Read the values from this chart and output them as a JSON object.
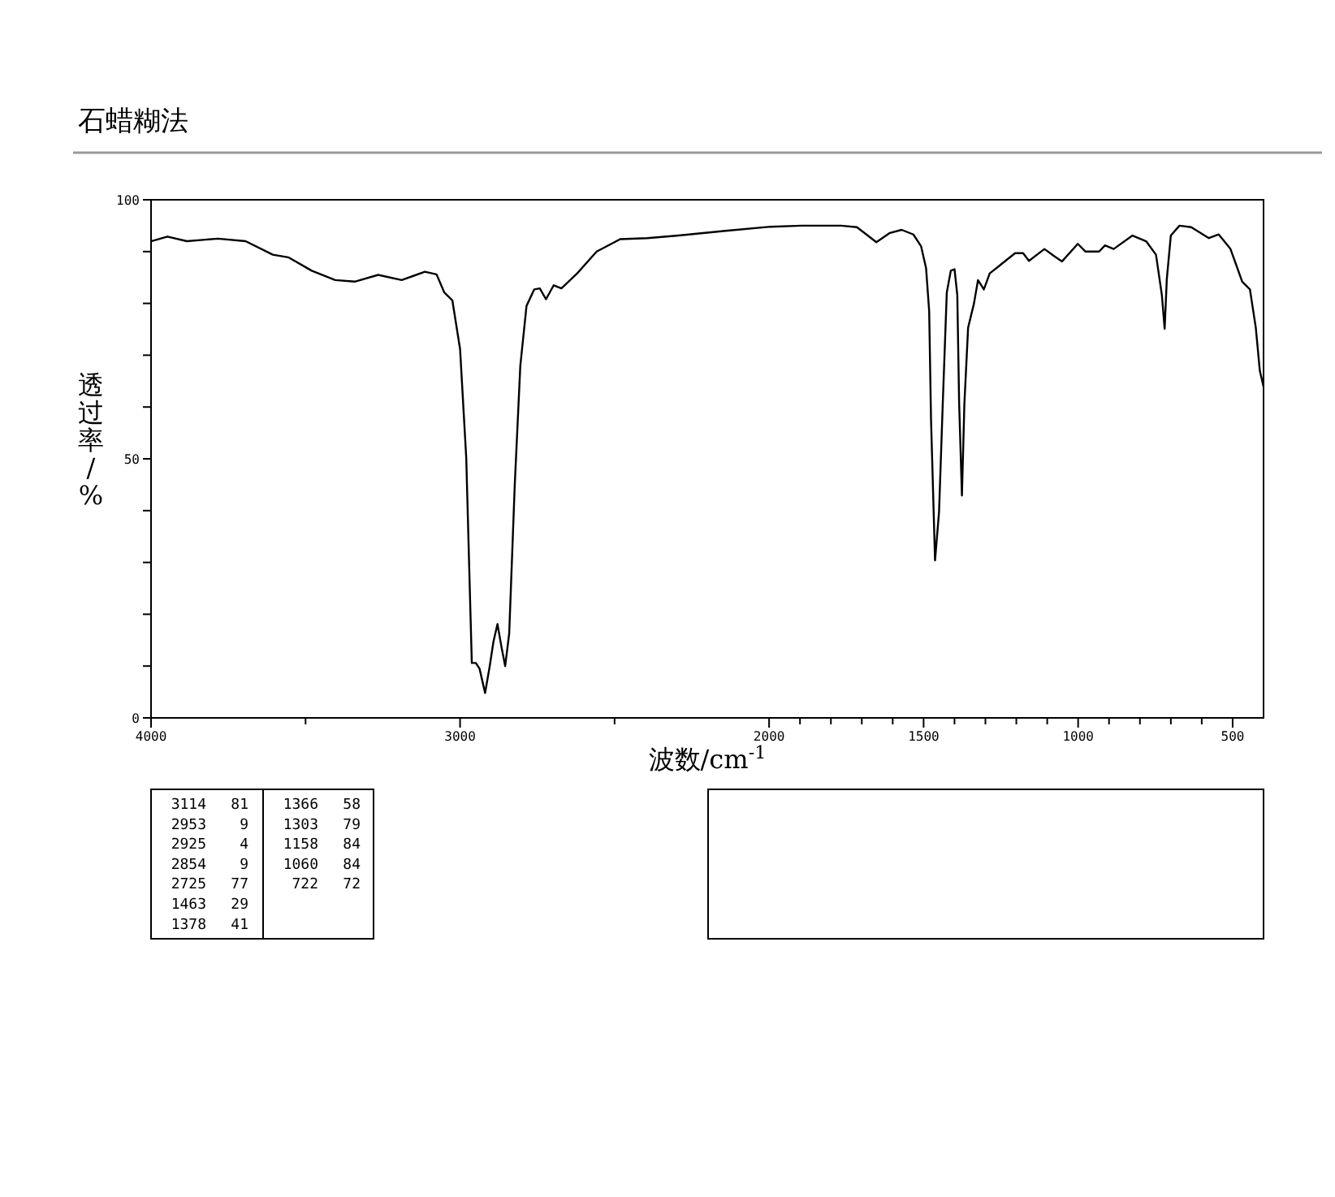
{
  "chart_data": {
    "type": "line",
    "title": "石蜡糊法",
    "xlabel": "波数/cm$^{-1}$",
    "ylabel": "透过率/%",
    "xlim": [
      4000,
      400
    ],
    "xticks": [
      4000,
      {
        "value": 3500,
        "label": null
      },
      3000,
      {
        "value": 2500,
        "label": null
      },
      2000,
      {
        "value": 1900,
        "label": null
      },
      {
        "value": 1800,
        "label": null
      },
      {
        "value": 1700,
        "label": null
      },
      {
        "value": 1600,
        "label": null
      },
      1500,
      {
        "value": 1400,
        "label": null
      },
      {
        "value": 1300,
        "label": null
      },
      {
        "value": 1200,
        "label": null
      },
      {
        "value": 1100,
        "label": null
      },
      1000,
      {
        "value": 900,
        "label": null
      },
      {
        "value": 800,
        "label": null
      },
      {
        "value": 700,
        "label": null
      },
      {
        "value": 600,
        "label": null
      },
      500
    ],
    "ylim": [
      0,
      100
    ],
    "yticks": [
      0,
      {
        "value": 10,
        "label": null
      },
      {
        "value": 20,
        "label": null
      },
      {
        "value": 30,
        "label": null
      },
      {
        "value": 40,
        "label": null
      },
      50,
      {
        "value": 60,
        "label": null
      },
      {
        "value": 70,
        "label": null
      },
      {
        "value": 80,
        "label": null
      },
      {
        "value": 90,
        "label": null
      },
      100
    ],
    "grid": false,
    "series": [
      {
        "color": "#000000",
        "x": [
          4000,
          3947,
          3884,
          3783,
          3694,
          3606,
          3556,
          3480,
          3404,
          3341,
          3265,
          3189,
          3114,
          3076,
          3051,
          3025,
          3000,
          2980,
          2962,
          2949,
          2937,
          2919,
          2904,
          2892,
          2879,
          2866,
          2854,
          2841,
          2823,
          2805,
          2785,
          2760,
          2742,
          2722,
          2697,
          2672,
          2621,
          2558,
          2482,
          2394,
          2293,
          2141,
          1995,
          1894,
          1767,
          1716,
          1685,
          1653,
          1609,
          1571,
          1533,
          1508,
          1492,
          1482,
          1476,
          1463,
          1450,
          1438,
          1425,
          1412,
          1400,
          1391,
          1385,
          1376,
          1368,
          1356,
          1337,
          1324,
          1305,
          1286,
          1254,
          1204,
          1178,
          1159,
          1109,
          1077,
          1052,
          1001,
          976,
          932,
          913,
          885,
          824,
          780,
          748,
          729,
          720,
          713,
          700,
          672,
          634,
          577,
          545,
          507,
          469,
          444,
          425,
          412,
          400
        ],
        "values": [
          92.0,
          92.9,
          92.0,
          92.5,
          92.0,
          89.4,
          88.9,
          86.3,
          84.5,
          84.2,
          85.5,
          84.5,
          86.1,
          85.6,
          82.1,
          80.6,
          71.2,
          50.2,
          10.6,
          10.6,
          9.5,
          4.8,
          10.0,
          14.7,
          18.1,
          13.7,
          10.0,
          16.3,
          45.0,
          68.0,
          79.5,
          82.7,
          82.9,
          80.8,
          83.5,
          82.9,
          85.8,
          90.0,
          92.4,
          92.6,
          93.1,
          94.0,
          94.8,
          95.0,
          95.0,
          94.7,
          93.3,
          91.8,
          93.6,
          94.2,
          93.3,
          91.0,
          86.8,
          78.5,
          57.6,
          30.4,
          39.8,
          60.7,
          82.1,
          86.3,
          86.6,
          81.6,
          60.7,
          42.9,
          60.7,
          75.3,
          80.0,
          84.5,
          82.7,
          85.8,
          87.3,
          89.7,
          89.7,
          88.2,
          90.5,
          89.1,
          88.1,
          91.5,
          90.0,
          90.0,
          91.2,
          90.5,
          93.1,
          92.0,
          89.4,
          81.6,
          75.1,
          84.7,
          93.1,
          95.0,
          94.7,
          92.6,
          93.3,
          90.5,
          84.2,
          82.7,
          75.3,
          67.0,
          63.9
        ]
      }
    ],
    "annotations": [
      "3114 81",
      "2953 9",
      "2925 4",
      "2854 9",
      "2725 77",
      "1463 29",
      "1378 41",
      "1366 58",
      "1303 79",
      "1158 84",
      "1060 84",
      "722 72"
    ]
  }
}
